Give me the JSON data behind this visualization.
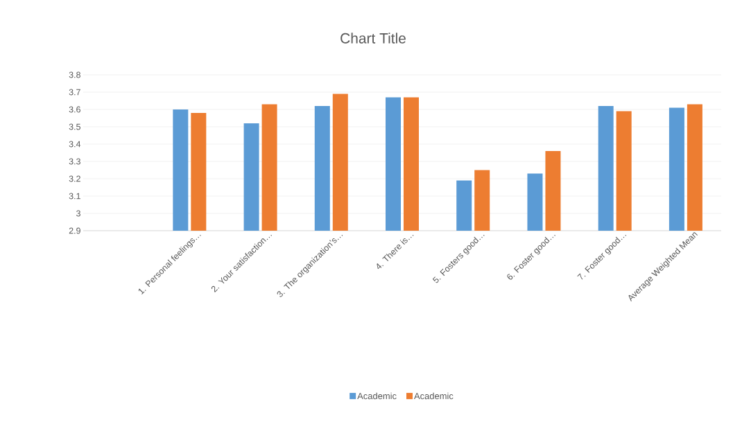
{
  "chart_data": {
    "type": "bar",
    "title": "Chart Title",
    "categories": [
      null,
      "1. Personal feelings…",
      "2. Your satisfaction…",
      "3. The organization’s…",
      "4. There is…",
      "5. Fosters good…",
      "6. Foster good…",
      "7. Foster good…",
      "Average Weighted Mean"
    ],
    "series": [
      {
        "name": "Academic",
        "color": "#5b9bd5",
        "values": [
          null,
          3.6,
          3.52,
          3.62,
          3.67,
          3.19,
          3.23,
          3.62,
          3.61
        ]
      },
      {
        "name": "Academic",
        "color": "#ed7d31",
        "values": [
          null,
          3.58,
          3.63,
          3.69,
          3.67,
          3.25,
          3.36,
          3.59,
          3.63
        ]
      }
    ],
    "ylim": [
      2.9,
      3.8
    ],
    "yticks": [
      2.9,
      3,
      3.1,
      3.2,
      3.3,
      3.4,
      3.5,
      3.6,
      3.7,
      3.8
    ],
    "grid": "y",
    "legend": "bottom"
  }
}
